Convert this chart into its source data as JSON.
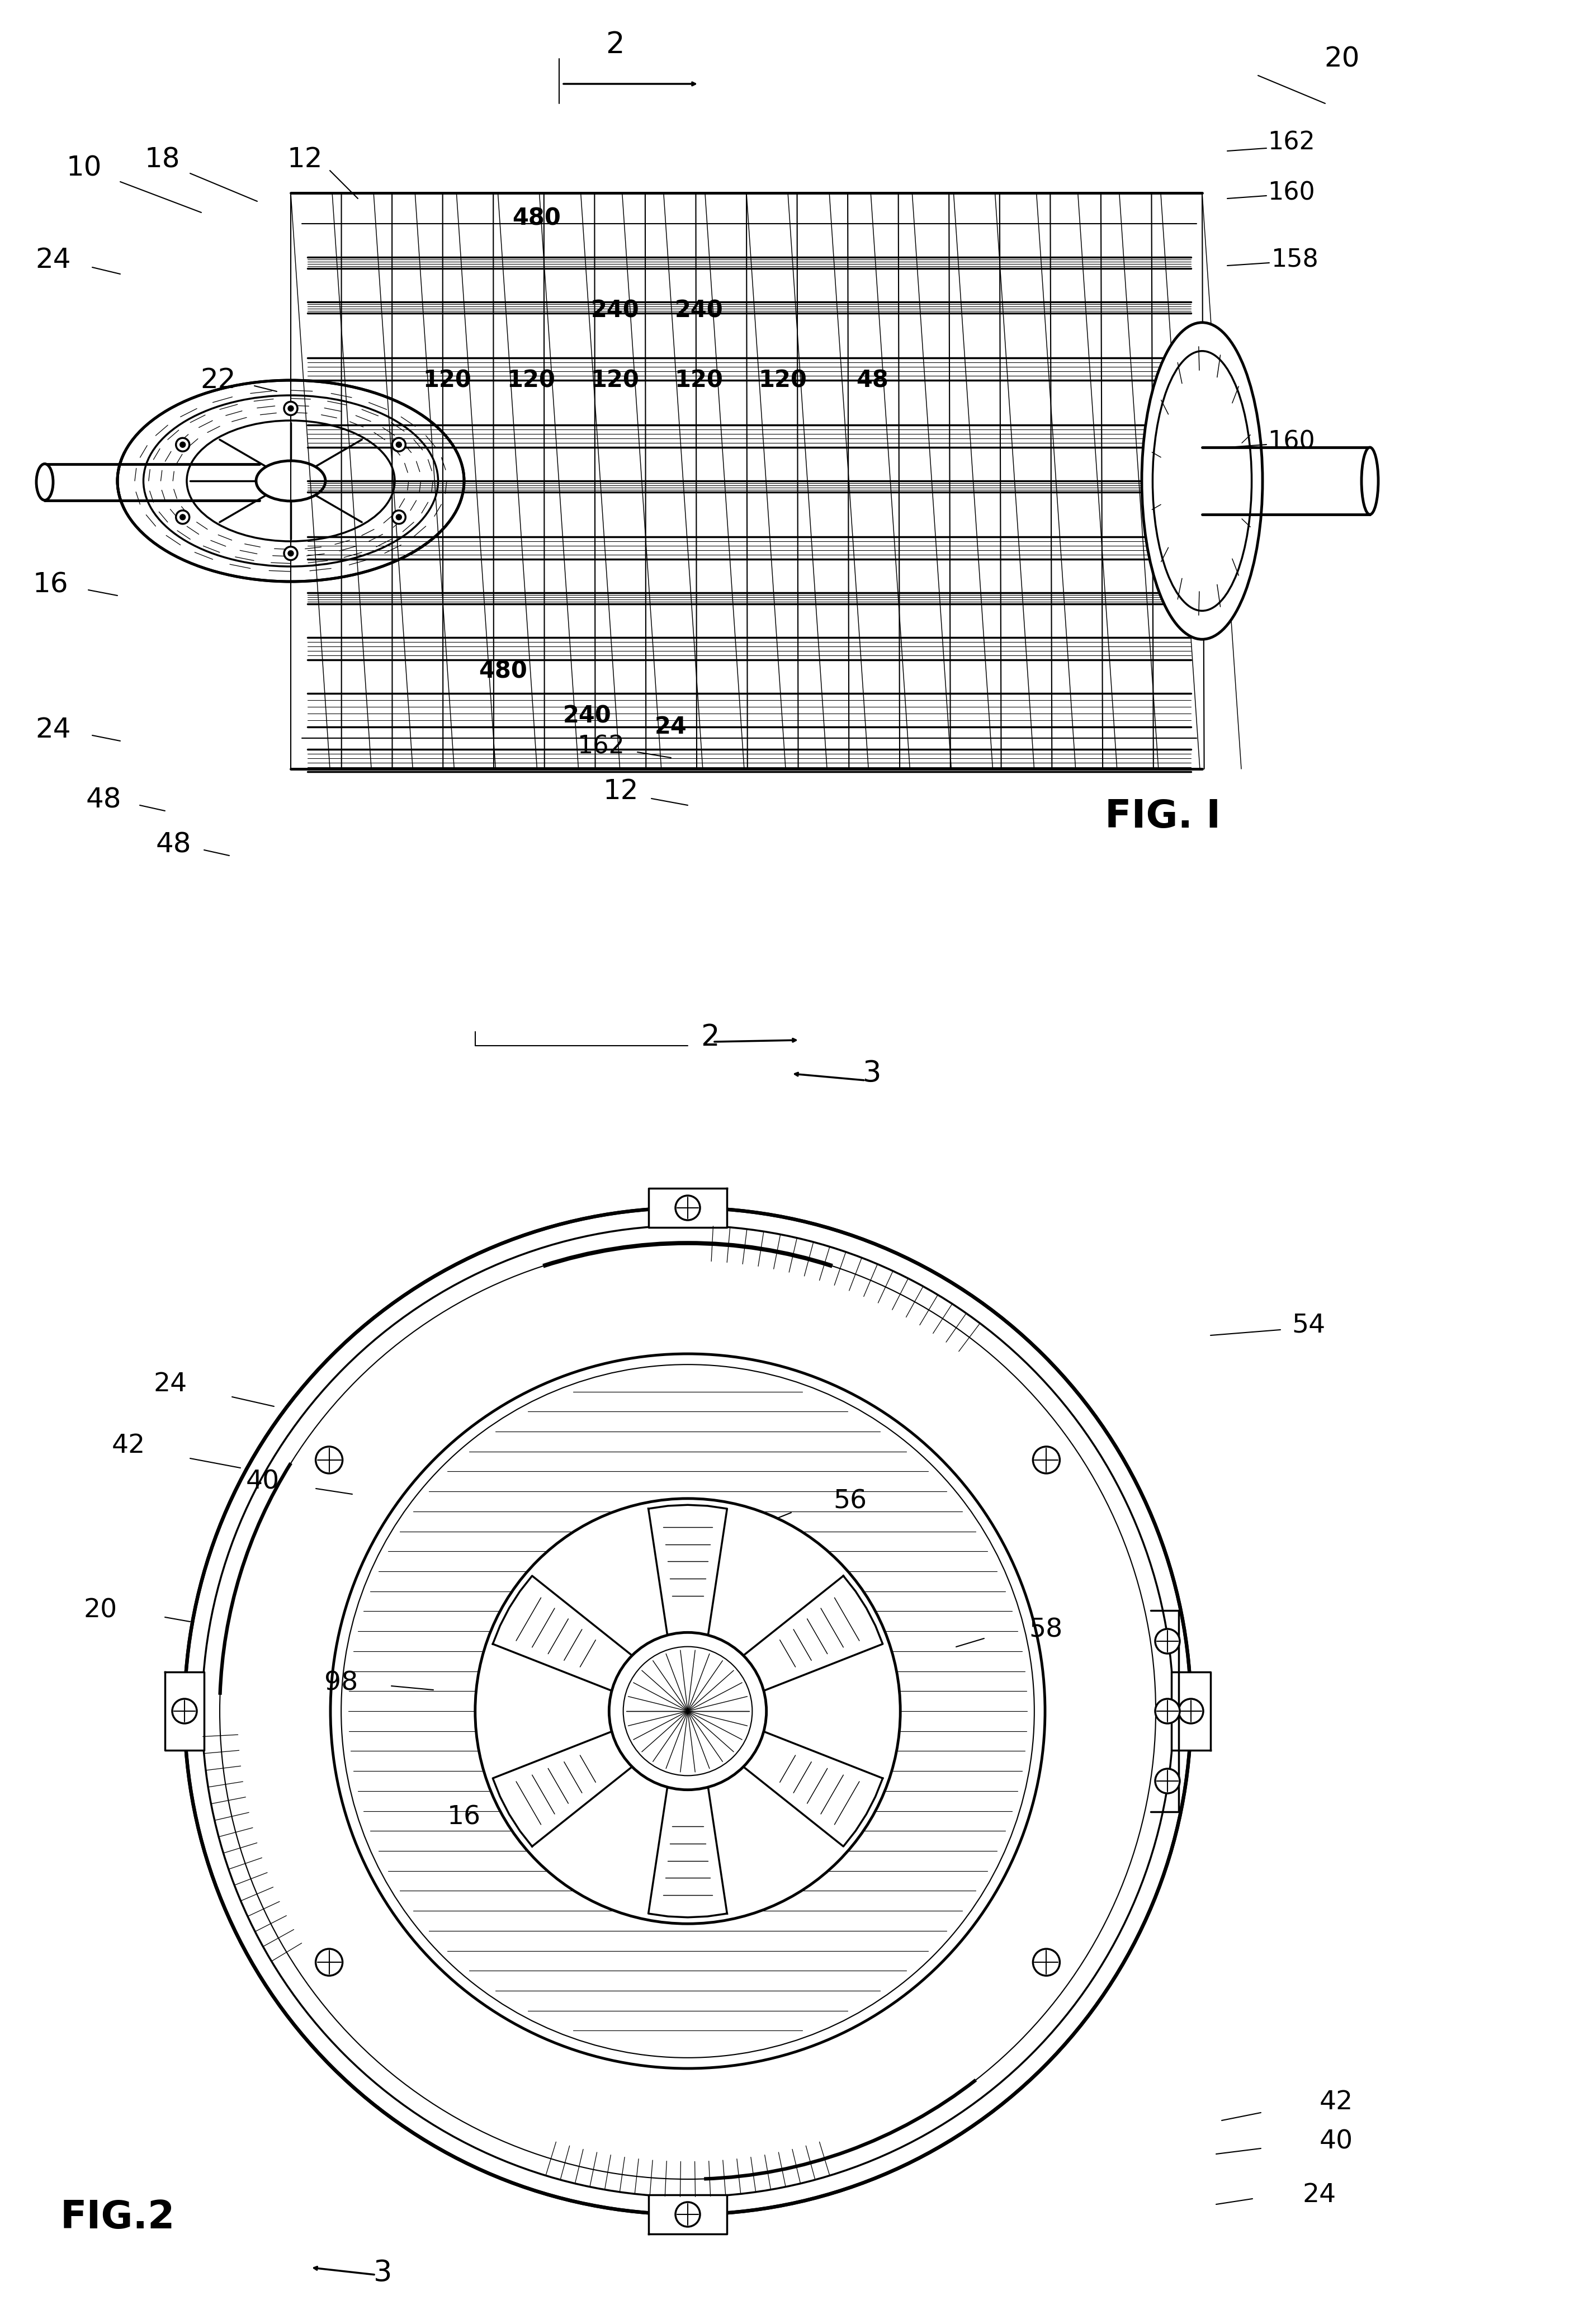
{
  "background_color": "#ffffff",
  "line_color": "#000000",
  "fig1": {
    "title": "FIG. I",
    "volt_data": [
      [
        960,
        390,
        "480"
      ],
      [
        1100,
        555,
        "240"
      ],
      [
        1250,
        555,
        "240"
      ],
      [
        800,
        680,
        "120"
      ],
      [
        950,
        680,
        "120"
      ],
      [
        1100,
        680,
        "120"
      ],
      [
        1250,
        680,
        "120"
      ],
      [
        1400,
        680,
        "120"
      ],
      [
        1560,
        680,
        "48"
      ],
      [
        900,
        1200,
        "480"
      ],
      [
        1050,
        1280,
        "240"
      ],
      [
        1200,
        1300,
        "24"
      ]
    ]
  },
  "fig2": {
    "title": "FIG.2"
  }
}
